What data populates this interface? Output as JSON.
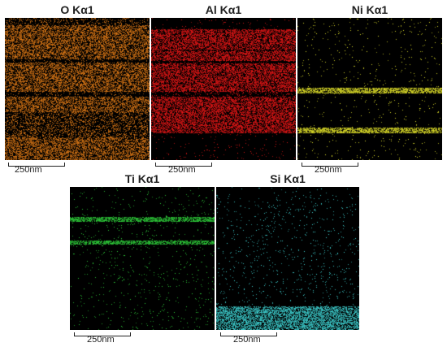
{
  "maps": [
    {
      "id": "O",
      "label": "O Kα1",
      "color": "#e07a16",
      "scale_label": "250nm"
    },
    {
      "id": "Al",
      "label": "Al Kα1",
      "color": "#e81616",
      "scale_label": "250nm"
    },
    {
      "id": "Ni",
      "label": "Ni Kα1",
      "color": "#e6e62a",
      "scale_label": "250nm"
    },
    {
      "id": "Ti",
      "label": "Ti Kα1",
      "color": "#2ed13a",
      "scale_label": "250nm"
    },
    {
      "id": "Si",
      "label": "Si Kα1",
      "color": "#3fd6d6",
      "scale_label": "250nm"
    }
  ]
}
